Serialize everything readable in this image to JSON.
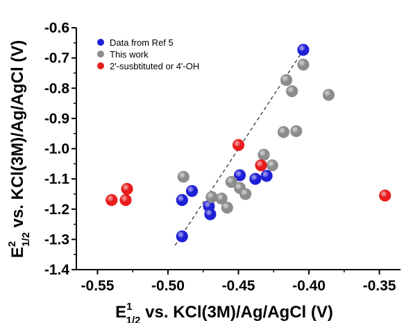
{
  "chart_data": {
    "type": "scatter",
    "xlabel": {
      "main": "E",
      "sup": "1",
      "sub": "1/2",
      "rest": " vs. KCl(3M)/Ag/AgCl (V)"
    },
    "ylabel": {
      "main": "E",
      "sup": "2",
      "sub": "1/2",
      "rest": " vs. KCl(3M)/Ag/AgCl (V)"
    },
    "xlim": [
      -0.565,
      -0.335
    ],
    "ylim": [
      -1.4,
      -0.6
    ],
    "xticks": [
      -0.55,
      -0.5,
      -0.45,
      -0.4,
      -0.35
    ],
    "xtick_labels": [
      "-0.55",
      "-0.50",
      "-0.45",
      "-0.40",
      "-0.35"
    ],
    "yticks": [
      -0.6,
      -0.7,
      -0.8,
      -0.9,
      -1.0,
      -1.1,
      -1.2,
      -1.3,
      -1.4
    ],
    "ytick_labels": [
      "-0.6",
      "-0.7",
      "-0.8",
      "-0.9",
      "-1.0",
      "-1.1",
      "-1.2",
      "-1.3",
      "-1.4"
    ],
    "grid": false,
    "legend_position": "top-left",
    "series": [
      {
        "name": "Data from Ref 5",
        "color": "#1f1fd6",
        "points": [
          {
            "x": -0.404,
            "y": -0.673
          },
          {
            "x": -0.49,
            "y": -1.17
          },
          {
            "x": -0.483,
            "y": -1.14
          },
          {
            "x": -0.471,
            "y": -1.19
          },
          {
            "x": -0.47,
            "y": -1.217
          },
          {
            "x": -0.449,
            "y": -1.088
          },
          {
            "x": -0.438,
            "y": -1.1
          },
          {
            "x": -0.43,
            "y": -1.09
          },
          {
            "x": -0.49,
            "y": -1.29
          }
        ]
      },
      {
        "name": "This work",
        "color": "#8c8c8c",
        "points": [
          {
            "x": -0.404,
            "y": -0.722
          },
          {
            "x": -0.416,
            "y": -0.773
          },
          {
            "x": -0.412,
            "y": -0.81
          },
          {
            "x": -0.386,
            "y": -0.822
          },
          {
            "x": -0.418,
            "y": -0.945
          },
          {
            "x": -0.409,
            "y": -0.942
          },
          {
            "x": -0.432,
            "y": -1.02
          },
          {
            "x": -0.426,
            "y": -1.055
          },
          {
            "x": -0.489,
            "y": -1.093
          },
          {
            "x": -0.455,
            "y": -1.11
          },
          {
            "x": -0.449,
            "y": -1.13
          },
          {
            "x": -0.462,
            "y": -1.165
          },
          {
            "x": -0.445,
            "y": -1.15
          },
          {
            "x": -0.469,
            "y": -1.16
          },
          {
            "x": -0.458,
            "y": -1.195
          }
        ]
      },
      {
        "name": "2'-susbtituted or 4'-OH",
        "color": "#e81c1c",
        "points": [
          {
            "x": -0.45,
            "y": -0.988
          },
          {
            "x": -0.434,
            "y": -1.055
          },
          {
            "x": -0.529,
            "y": -1.133
          },
          {
            "x": -0.54,
            "y": -1.17
          },
          {
            "x": -0.53,
            "y": -1.17
          },
          {
            "x": -0.346,
            "y": -1.155
          }
        ]
      }
    ],
    "trend_line": {
      "style": "dashed",
      "x": [
        -0.495,
        -0.402
      ],
      "y": [
        -1.32,
        -0.66
      ]
    }
  }
}
